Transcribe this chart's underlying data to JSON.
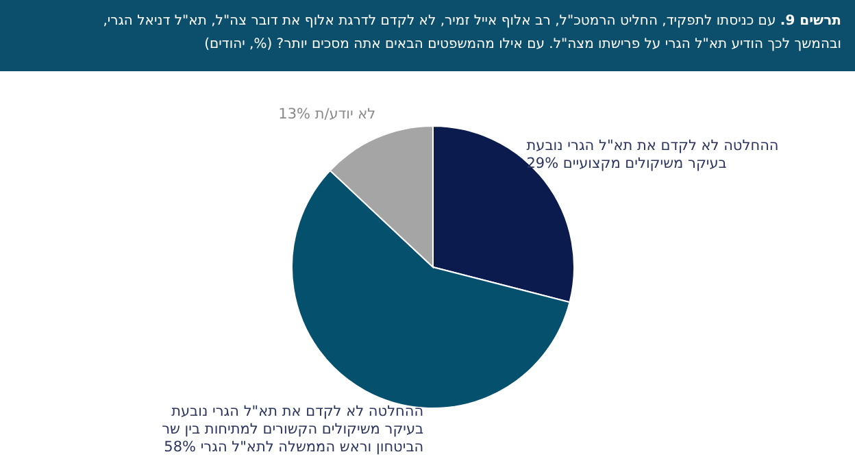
{
  "chart_data": {
    "type": "pie",
    "title": "תרשים 9. עם כניסתו לתפקיד, החליט הרמטכ\"ל, רב אלוף אייל זמיר, לא לקדם לדרגת אלוף את דובר צה\"ל, תא\"ל דניאל הגרי, ובהמשך לכך הודיע תא\"ל הגרי על פרישתו מצה\"ל. עם אילו מהמשפטים הבאים אתה מסכים יותר? (%, יהודים)",
    "categories": [
      "ההחלטה לא לקדם את תא\"ל הגרי נובעת בעיקר משיקולים מקצועיים",
      "ההחלטה לא לקדם את תא\"ל הגרי נובעת בעיקר משיקולים הקשורים למתיחות בין שר הביטחון וראש הממשלה לתא\"ל הגרי",
      "לא יודע/ת"
    ],
    "values": [
      29,
      58,
      13
    ],
    "value_labels": [
      "29%",
      "58%",
      "13%"
    ],
    "colors": [
      "#0c1b4d",
      "#04506d",
      "#a5a5a5"
    ]
  }
}
